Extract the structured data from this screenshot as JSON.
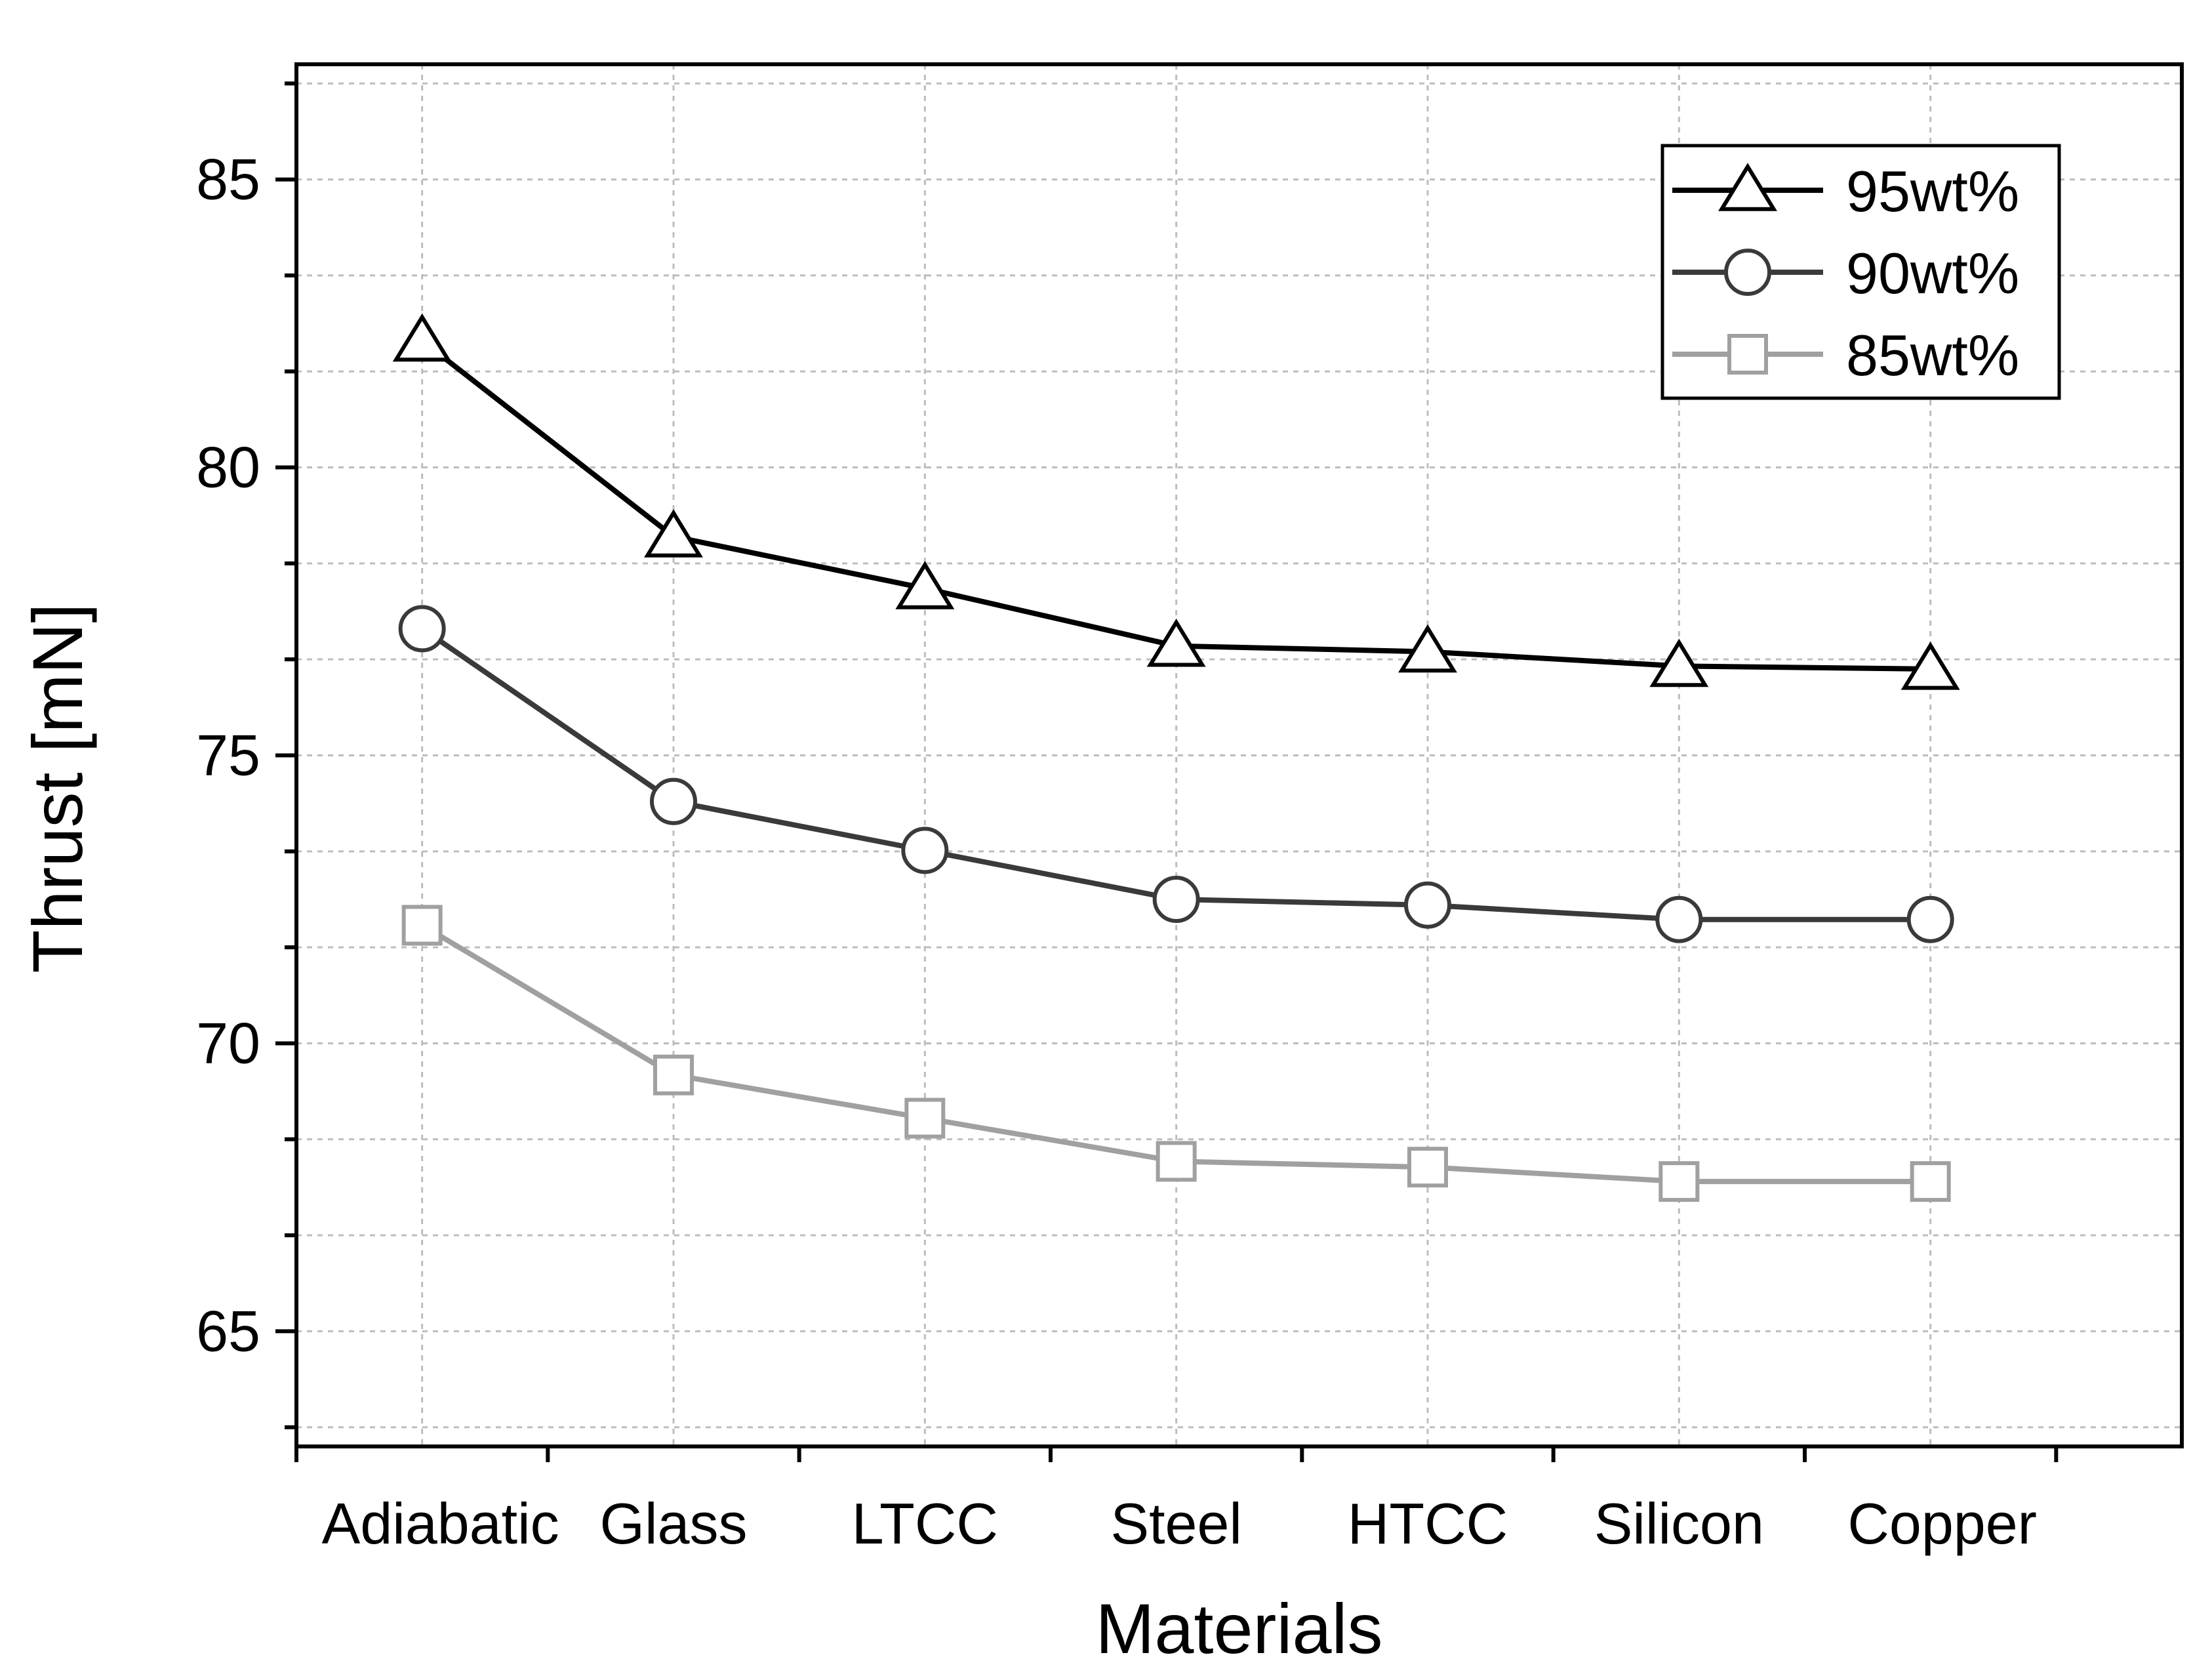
{
  "chart_data": {
    "type": "line",
    "categories": [
      "Adiabatic",
      "Glass",
      "LTCC",
      "Steel",
      "HTCC",
      "Silicon",
      "Copper"
    ],
    "xlabel": "Materials",
    "ylabel": "Thrust [mN]",
    "ylim": [
      63,
      87
    ],
    "yticks": [
      65,
      70,
      75,
      80,
      85
    ],
    "y_minor_step": 1.67,
    "grid": true,
    "legend_position": "top-right",
    "series": [
      {
        "name": "95wt%",
        "marker": "triangle",
        "color": "#000000",
        "values": [
          82.2,
          78.8,
          77.9,
          76.9,
          76.8,
          76.55,
          76.5
        ]
      },
      {
        "name": "90wt%",
        "marker": "circle",
        "color": "#3a3a3a",
        "values": [
          77.2,
          74.2,
          73.35,
          72.5,
          72.4,
          72.15,
          72.15
        ]
      },
      {
        "name": "85wt%",
        "marker": "square",
        "color": "#a0a0a0",
        "values": [
          72.05,
          69.45,
          68.7,
          67.95,
          67.85,
          67.6,
          67.6
        ]
      }
    ]
  }
}
